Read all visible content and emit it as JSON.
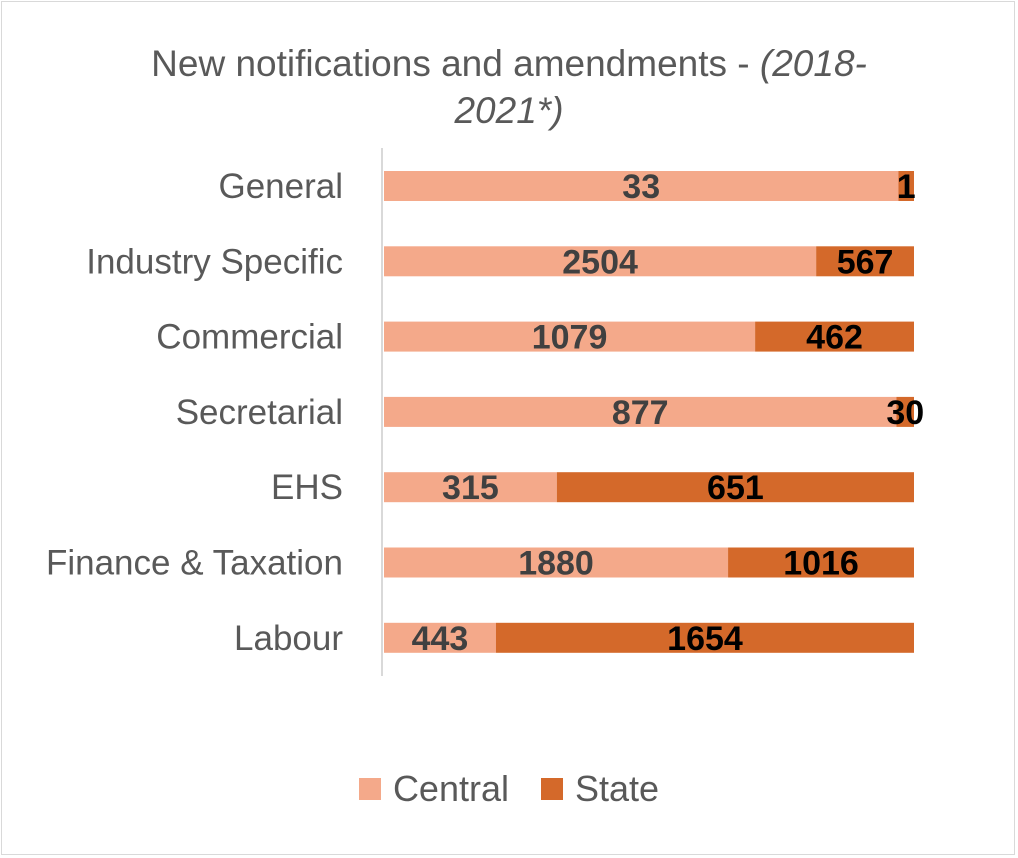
{
  "chart_data": {
    "type": "bar",
    "orientation": "horizontal",
    "stacked": true,
    "normalized": true,
    "title": {
      "line1": "New notifications and amendments - ",
      "line1_italic": "(2018-",
      "line2_italic": "2021*)"
    },
    "categories": [
      "General",
      "Industry Specific",
      "Commercial",
      "Secretarial",
      "EHS",
      "Finance & Taxation",
      "Labour"
    ],
    "series": [
      {
        "name": "Central",
        "color": "#f4a98a",
        "values": [
          33,
          2504,
          1079,
          877,
          315,
          1880,
          443
        ]
      },
      {
        "name": "State",
        "color": "#d4692a",
        "values": [
          1,
          567,
          462,
          30,
          651,
          1016,
          1654
        ]
      }
    ],
    "data_labels": true,
    "grid": false,
    "legend_position": "bottom"
  }
}
